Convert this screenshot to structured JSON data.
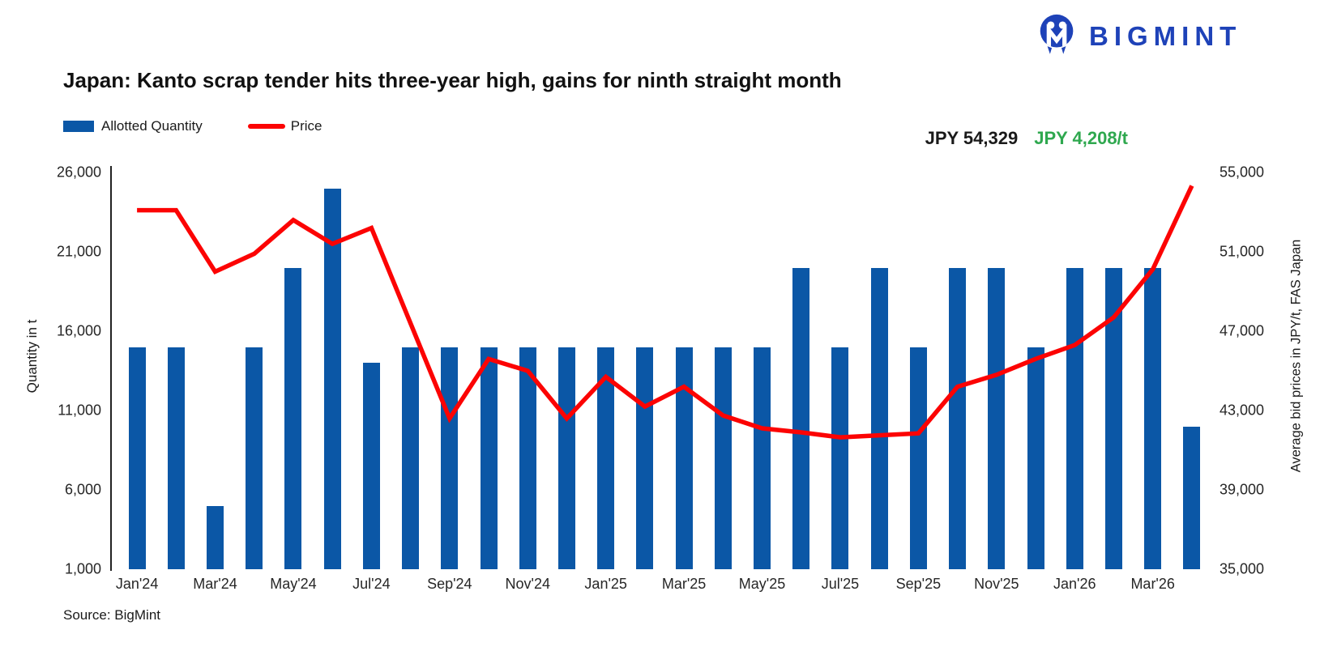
{
  "colors": {
    "bar": "#0B57A6",
    "line": "#FC0303",
    "green": "#2FA84F",
    "logo": "#1E42B8"
  },
  "header": {
    "logo_text": "BIGMINT",
    "title": "Japan: Kanto scrap tender hits three-year high, gains for ninth straight month"
  },
  "legend": [
    {
      "label": "Allotted Quantity",
      "type": "bar"
    },
    {
      "label": "Price",
      "type": "line"
    }
  ],
  "annotations": {
    "latest_price": "JPY 54,329",
    "monthly_gain": "JPY 4,208/t"
  },
  "source": "Source: BigMint",
  "chart_data": {
    "type": "bar+line combo, dual axis",
    "categories": [
      "Jan'24",
      "Feb'24",
      "Mar'24",
      "Apr'24",
      "May'24",
      "Jun'24",
      "Jul'24",
      "Aug'24",
      "Sep'24",
      "Oct'24",
      "Nov'24",
      "Dec'24",
      "Jan'25",
      "Feb'25",
      "Mar'25",
      "Apr'25",
      "May'25",
      "Jun'25",
      "Jul'25",
      "Aug'25",
      "Sep'25",
      "Oct'25",
      "Nov'25",
      "Dec'25",
      "Jan'26",
      "Feb'26",
      "Mar'26",
      "Apr'26"
    ],
    "series": [
      {
        "name": "Allotted Quantity",
        "type": "bar",
        "axis": "left",
        "values": [
          15000,
          15000,
          5000,
          15000,
          20000,
          25000,
          14000,
          15000,
          15000,
          15000,
          15000,
          15000,
          15000,
          15000,
          15000,
          15000,
          15000,
          20000,
          15000,
          20000,
          15000,
          20000,
          20000,
          15000,
          20000,
          20000,
          20000,
          10000
        ]
      },
      {
        "name": "Price",
        "type": "line",
        "axis": "right",
        "values": [
          53100,
          53100,
          50000,
          50900,
          52600,
          51400,
          52200,
          47400,
          42600,
          45600,
          45000,
          42600,
          44700,
          43200,
          44200,
          42750,
          42100,
          41900,
          41650,
          41750,
          41850,
          44200,
          44800,
          45600,
          46300,
          47700,
          50121,
          54329
        ]
      }
    ],
    "left_axis": {
      "title": "Quantity in t",
      "min": 1000,
      "max": 26000,
      "ticks": [
        "26,000",
        "21,000",
        "16,000",
        "11,000",
        "6,000",
        "1,000"
      ]
    },
    "right_axis": {
      "title": "Average bid prices in JPY/t, FAS Japan",
      "min": 35000,
      "max": 55000,
      "ticks": [
        "55,000",
        "51,000",
        "47,000",
        "43,000",
        "39,000",
        "35,000"
      ]
    },
    "x_ticks": [
      "Jan'24",
      "Mar'24",
      "May'24",
      "Jul'24",
      "Sep'24",
      "Nov'24",
      "Jan'25",
      "Mar'25",
      "May'25",
      "Jul'25",
      "Sep'25",
      "Nov'25",
      "Jan'26",
      "Mar'26"
    ],
    "grid": false,
    "legend_position": "top-left"
  }
}
